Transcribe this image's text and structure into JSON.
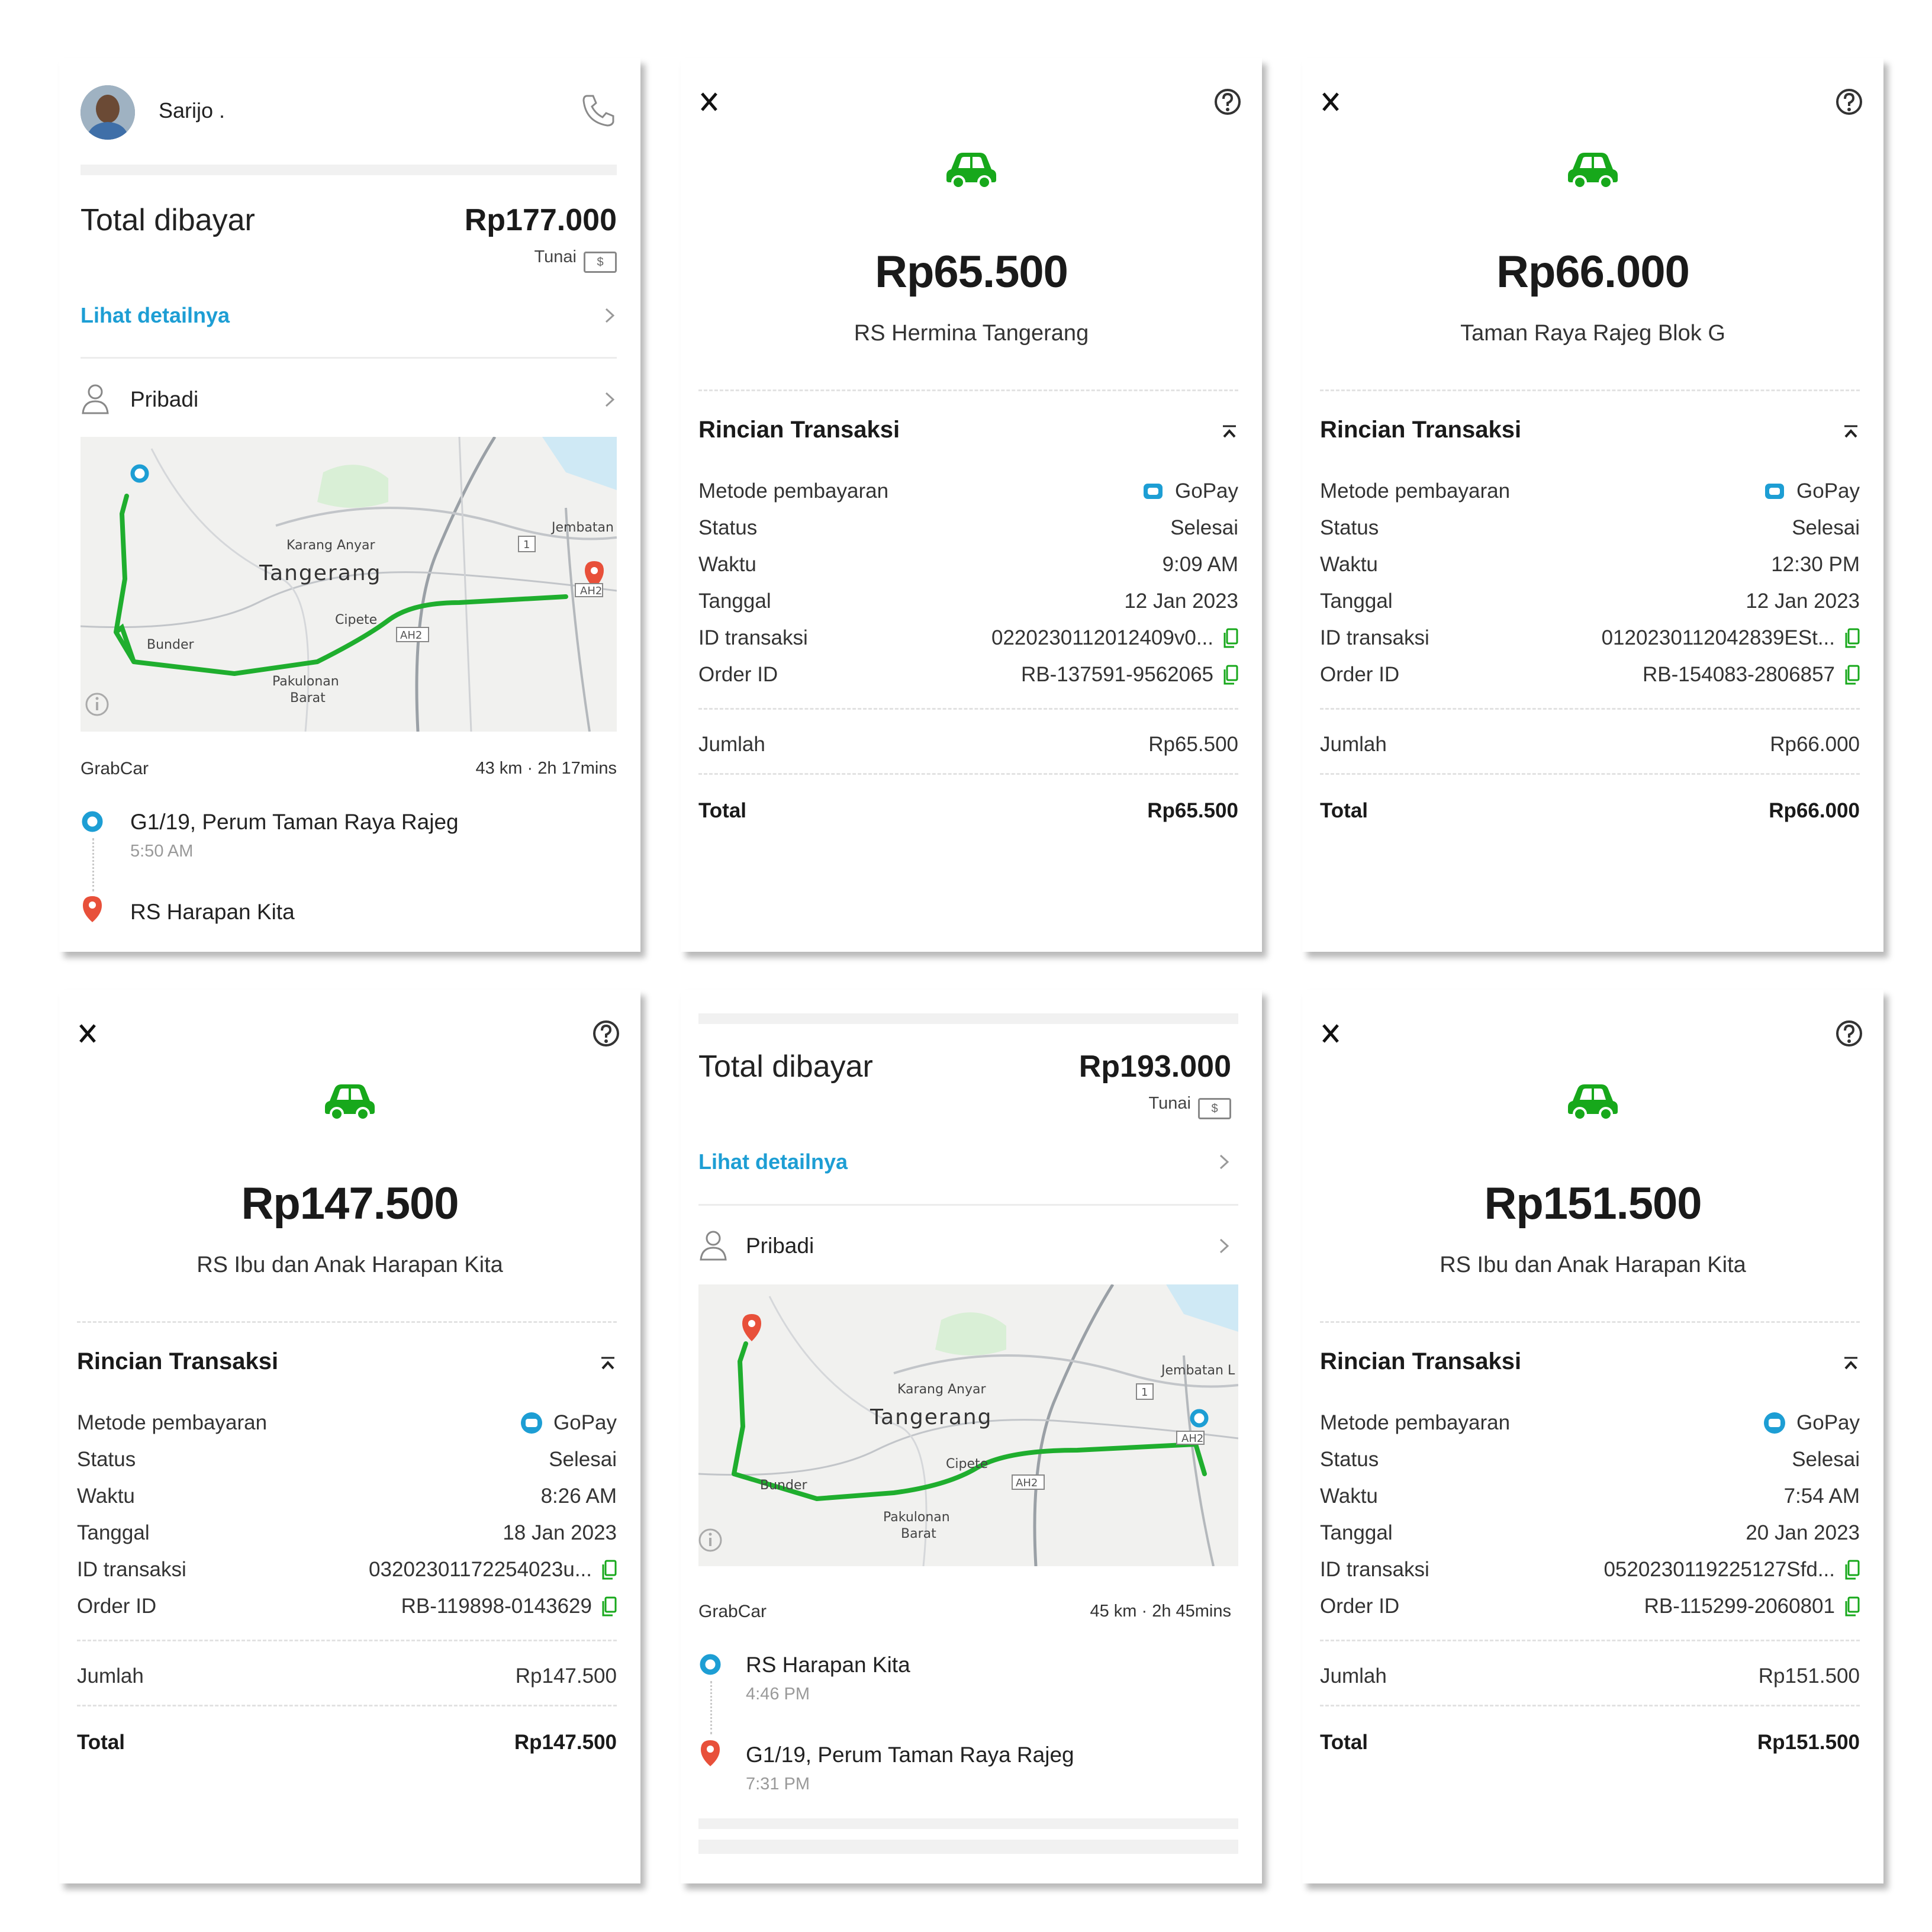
{
  "panels": {
    "tl": {
      "driver": "Sarijo .",
      "total_label": "Total dibayar",
      "total_value": "Rp177.000",
      "payment_method": "Tunai",
      "cash_symbol": "$",
      "detail_link": "Lihat detailnya",
      "profile": "Pribadi",
      "service": "GrabCar",
      "distance": "43 km · 2h 17mins",
      "pickup": "G1/19, Perum Taman Raya Rajeg",
      "pickup_time": "5:50 AM",
      "dropoff": "RS Harapan Kita",
      "map_labels": [
        "Jembatan",
        "Karang Anyar",
        "Tangerang",
        "Cipete",
        "Bunder",
        "Pakulonan",
        "Barat",
        "AH2",
        "AH2",
        "1"
      ]
    },
    "tm": {
      "amount": "Rp65.500",
      "place": "RS Hermina Tangerang",
      "section": "Rincian Transaksi",
      "rows": [
        {
          "label": "Metode pembayaran",
          "value": "GoPay"
        },
        {
          "label": "Status",
          "value": "Selesai"
        },
        {
          "label": "Waktu",
          "value": "9:09 AM"
        },
        {
          "label": "Tanggal",
          "value": "12 Jan 2023"
        },
        {
          "label": "ID transaksi",
          "value": "0220230112012409v0..."
        },
        {
          "label": "Order ID",
          "value": "RB-137591-9562065"
        }
      ],
      "jumlah_label": "Jumlah",
      "jumlah_value": "Rp65.500",
      "total_label": "Total",
      "total_value": "Rp65.500"
    },
    "tr": {
      "amount": "Rp66.000",
      "place": "Taman Raya Rajeg Blok G",
      "section": "Rincian Transaksi",
      "rows": [
        {
          "label": "Metode pembayaran",
          "value": "GoPay"
        },
        {
          "label": "Status",
          "value": "Selesai"
        },
        {
          "label": "Waktu",
          "value": "12:30 PM"
        },
        {
          "label": "Tanggal",
          "value": "12 Jan 2023"
        },
        {
          "label": "ID transaksi",
          "value": "0120230112042839ESt..."
        },
        {
          "label": "Order ID",
          "value": "RB-154083-2806857"
        }
      ],
      "jumlah_label": "Jumlah",
      "jumlah_value": "Rp66.000",
      "total_label": "Total",
      "total_value": "Rp66.000"
    },
    "bl": {
      "amount": "Rp147.500",
      "place": "RS Ibu dan Anak Harapan Kita",
      "section": "Rincian Transaksi",
      "rows": [
        {
          "label": "Metode pembayaran",
          "value": "GoPay"
        },
        {
          "label": "Status",
          "value": "Selesai"
        },
        {
          "label": "Waktu",
          "value": "8:26 AM"
        },
        {
          "label": "Tanggal",
          "value": "18 Jan 2023"
        },
        {
          "label": "ID transaksi",
          "value": "0320230117225402​3u..."
        },
        {
          "label": "Order ID",
          "value": "RB-119898-0143629"
        }
      ],
      "jumlah_label": "Jumlah",
      "jumlah_value": "Rp147.500",
      "total_label": "Total",
      "total_value": "Rp147.500"
    },
    "bm": {
      "total_label": "Total dibayar",
      "total_value": "Rp193.000",
      "payment_method": "Tunai",
      "cash_symbol": "$",
      "detail_link": "Lihat detailnya",
      "profile": "Pribadi",
      "service": "GrabCar",
      "distance": "45 km · 2h 45mins",
      "pickup": "RS Harapan Kita",
      "pickup_time": "4:46 PM",
      "dropoff": "G1/19, Perum Taman Raya Rajeg",
      "dropoff_time": "7:31 PM",
      "map_labels": [
        "Jembatan L",
        "Karang Anyar",
        "Tangerang",
        "Cipete",
        "Bunder",
        "Pakulonan",
        "Barat",
        "AH2",
        "AH2",
        "1"
      ]
    },
    "br": {
      "amount": "Rp151.500",
      "place": "RS Ibu dan Anak Harapan Kita",
      "section": "Rincian Transaksi",
      "rows": [
        {
          "label": "Metode pembayaran",
          "value": "GoPay"
        },
        {
          "label": "Status",
          "value": "Selesai"
        },
        {
          "label": "Waktu",
          "value": "7:54 AM"
        },
        {
          "label": "Tanggal",
          "value": "20 Jan 2023"
        },
        {
          "label": "ID transaksi",
          "value": "0520230119225127Sfd..."
        },
        {
          "label": "Order ID",
          "value": "RB-115299-2060801"
        }
      ],
      "jumlah_label": "Jumlah",
      "jumlah_value": "Rp151.500",
      "total_label": "Total",
      "total_value": "Rp151.500"
    }
  },
  "colors": {
    "accent_blue": "#1d9ed4",
    "grab_green": "#17a81b",
    "pin_red": "#e8503a",
    "route_green": "#1fae2e"
  }
}
